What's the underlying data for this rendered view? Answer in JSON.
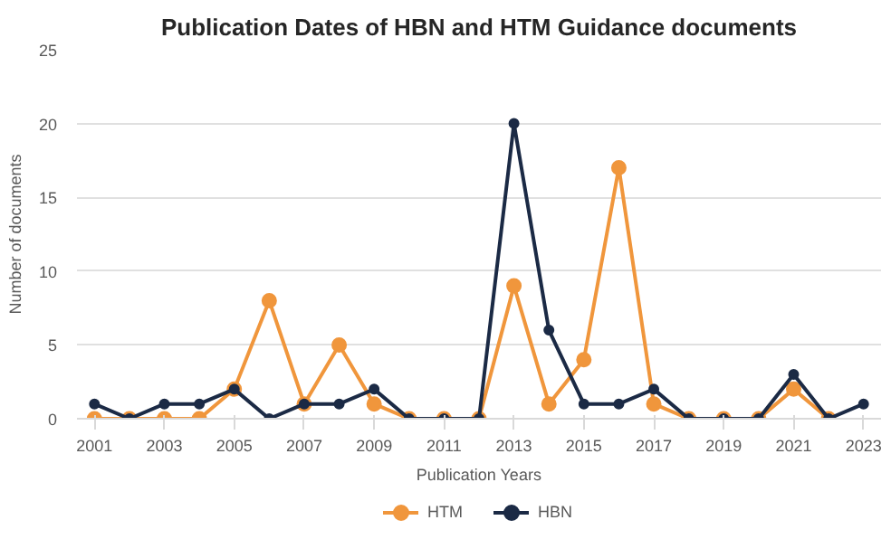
{
  "chart_data": {
    "type": "line",
    "title": "Publication Dates of HBN and HTM Guidance documents",
    "xlabel": "Publication Years",
    "ylabel": "Number of documents",
    "categories": [
      "2001",
      null,
      "2003",
      null,
      "2005",
      null,
      "2007",
      null,
      "2009",
      null,
      "2011",
      null,
      "2013",
      null,
      "2015",
      null,
      "2017",
      null,
      "2019",
      null,
      "2021",
      null,
      "2023"
    ],
    "series": [
      {
        "name": "HTM",
        "color": "#f0963c",
        "values": [
          0,
          0,
          0,
          0,
          2,
          8,
          1,
          5,
          1,
          0,
          0,
          0,
          9,
          1,
          4,
          17,
          1,
          0,
          0,
          0,
          2,
          0,
          null
        ]
      },
      {
        "name": "HBN",
        "color": "#1b2a45",
        "values": [
          1,
          0,
          1,
          1,
          2,
          0,
          1,
          1,
          2,
          0,
          0,
          0,
          20,
          6,
          1,
          1,
          2,
          0,
          0,
          0,
          3,
          0,
          1
        ]
      }
    ],
    "ylim": [
      0,
      25
    ],
    "yticks": [
      0,
      5,
      10,
      15,
      20,
      25
    ],
    "grid": "y",
    "legend": "bottom",
    "marker": "circle",
    "line_style": "solid"
  }
}
